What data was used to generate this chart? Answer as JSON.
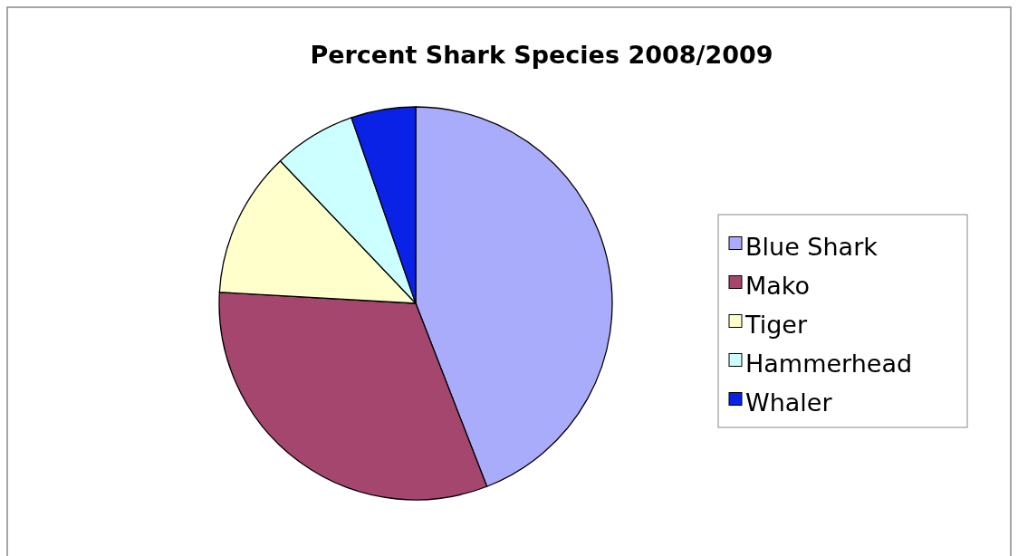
{
  "chart_data": {
    "type": "pie",
    "title": "Percent Shark Species 2008/2009",
    "categories": [
      "Blue Shark",
      "Mako",
      "Tiger",
      "Hammerhead",
      "Whaler"
    ],
    "values": [
      44.1,
      31.8,
      12.0,
      6.8,
      5.3
    ],
    "colors": [
      "#a9acfa",
      "#a5466f",
      "#ffffcc",
      "#ccffff",
      "#0a22e6"
    ],
    "legend": "right"
  }
}
